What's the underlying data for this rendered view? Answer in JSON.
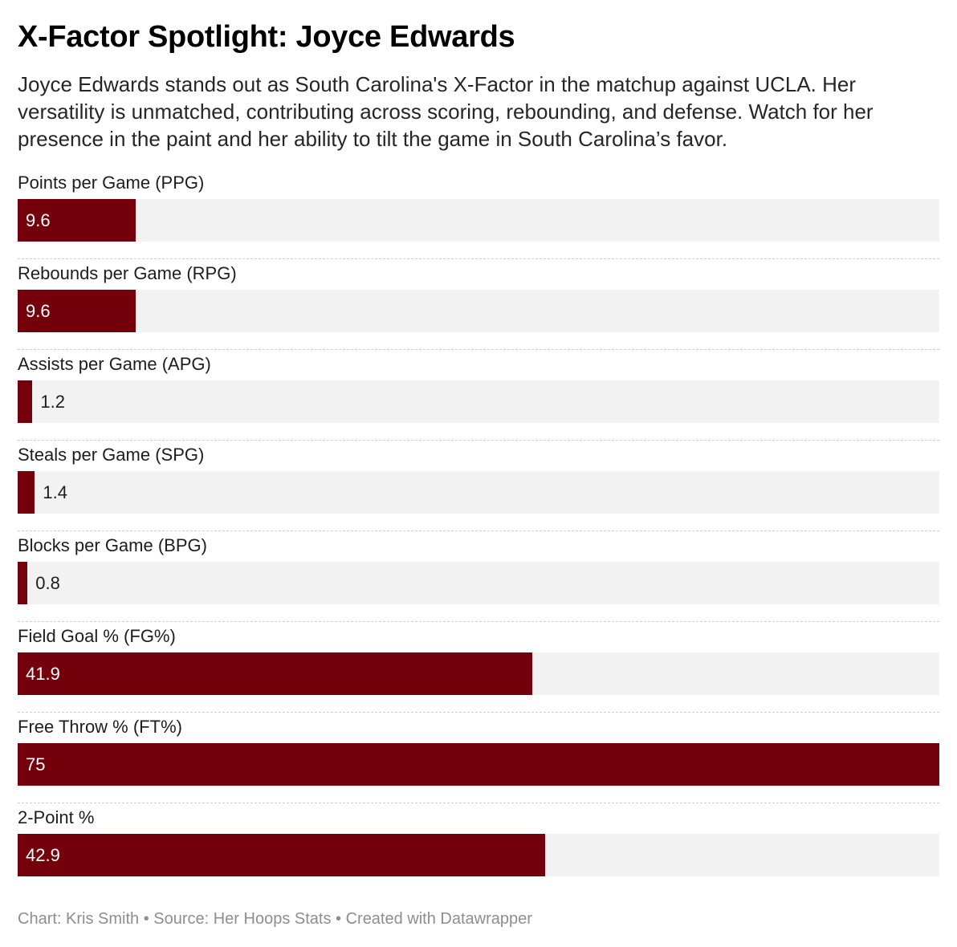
{
  "header": {
    "title": "X-Factor Spotlight: Joyce Edwards",
    "subtitle": "Joyce Edwards stands out as South Carolina's X-Factor in the matchup against UCLA. Her versatility is unmatched, contributing across scoring, rebounding, and defense. Watch for her presence in the paint and her ability to tilt the game in South Carolina’s favor."
  },
  "footer": {
    "credit": "Chart: Kris Smith • Source: Her Hoops Stats • Created with Datawrapper"
  },
  "colors": {
    "bar": "#73000a",
    "track": "#f2f2f2"
  },
  "chart_data": {
    "type": "bar",
    "orientation": "horizontal",
    "title": "X-Factor Spotlight: Joyce Edwards",
    "xlim": [
      0,
      75
    ],
    "grid": false,
    "legend": "none",
    "categories": [
      "Points per Game (PPG)",
      "Rebounds per Game (RPG)",
      "Assists per Game (APG)",
      "Steals per Game (SPG)",
      "Blocks per Game (BPG)",
      "Field Goal % (FG%)",
      "Free Throw % (FT%)",
      "2-Point %"
    ],
    "values": [
      9.6,
      9.6,
      1.2,
      1.4,
      0.8,
      41.9,
      75,
      42.9
    ],
    "value_labels": [
      "9.6",
      "9.6",
      "1.2",
      "1.4",
      "0.8",
      "41.9",
      "75",
      "42.9"
    ]
  }
}
